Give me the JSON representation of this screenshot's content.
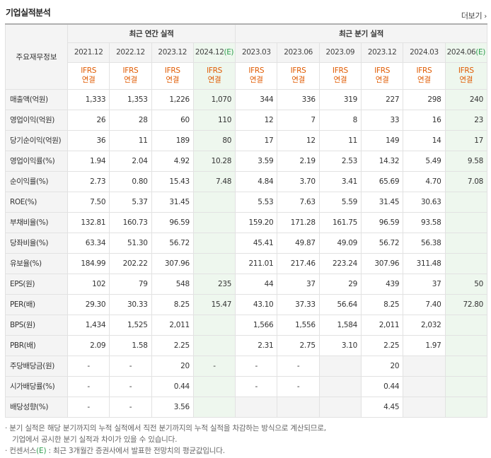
{
  "header": {
    "title": "기업실적분석",
    "more_label": "더보기",
    "more_arrow": "›"
  },
  "table": {
    "label_header": "주요재무정보",
    "group_annual": "최근 연간 실적",
    "group_quarter": "최근 분기 실적",
    "periods": [
      {
        "label": "2021.12",
        "est": false
      },
      {
        "label": "2022.12",
        "est": false
      },
      {
        "label": "2023.12",
        "est": false
      },
      {
        "label": "2024.12",
        "est": true
      },
      {
        "label": "2023.03",
        "est": false
      },
      {
        "label": "2023.06",
        "est": false
      },
      {
        "label": "2023.09",
        "est": false
      },
      {
        "label": "2023.12",
        "est": false
      },
      {
        "label": "2024.03",
        "est": false
      },
      {
        "label": "2024.06",
        "est": true
      }
    ],
    "est_mark": "(E)",
    "ifrs_line1": "IFRS",
    "ifrs_line2": "연결",
    "rows": [
      {
        "label": "매출액(억원)",
        "values": [
          "1,333",
          "1,353",
          "1,226",
          "1,070",
          "344",
          "336",
          "319",
          "227",
          "298",
          "240"
        ]
      },
      {
        "label": "영업이익(억원)",
        "values": [
          "26",
          "28",
          "60",
          "110",
          "12",
          "7",
          "8",
          "33",
          "16",
          "23"
        ]
      },
      {
        "label": "당기순이익(억원)",
        "values": [
          "36",
          "11",
          "189",
          "80",
          "17",
          "12",
          "11",
          "149",
          "14",
          "17"
        ]
      },
      {
        "label": "영업이익률(%)",
        "values": [
          "1.94",
          "2.04",
          "4.92",
          "10.28",
          "3.59",
          "2.19",
          "2.53",
          "14.32",
          "5.49",
          "9.58"
        ]
      },
      {
        "label": "순이익률(%)",
        "values": [
          "2.73",
          "0.80",
          "15.43",
          "7.48",
          "4.84",
          "3.70",
          "3.41",
          "65.69",
          "4.70",
          "7.08"
        ]
      },
      {
        "label": "ROE(%)",
        "values": [
          "7.50",
          "5.37",
          "31.45",
          "",
          "5.53",
          "7.63",
          "5.59",
          "31.45",
          "30.63",
          ""
        ]
      },
      {
        "label": "부채비율(%)",
        "values": [
          "132.81",
          "160.73",
          "96.59",
          "",
          "159.20",
          "171.28",
          "161.75",
          "96.59",
          "93.58",
          ""
        ]
      },
      {
        "label": "당좌비율(%)",
        "values": [
          "63.34",
          "51.30",
          "56.72",
          "",
          "45.41",
          "49.87",
          "49.09",
          "56.72",
          "56.38",
          ""
        ]
      },
      {
        "label": "유보율(%)",
        "values": [
          "184.99",
          "202.22",
          "307.96",
          "",
          "211.01",
          "217.46",
          "223.24",
          "307.96",
          "311.48",
          ""
        ]
      },
      {
        "label": "EPS(원)",
        "values": [
          "102",
          "79",
          "548",
          "235",
          "44",
          "37",
          "29",
          "439",
          "37",
          "50"
        ]
      },
      {
        "label": "PER(배)",
        "values": [
          "29.30",
          "30.33",
          "8.25",
          "15.47",
          "43.10",
          "37.33",
          "56.64",
          "8.25",
          "7.40",
          "72.80"
        ]
      },
      {
        "label": "BPS(원)",
        "values": [
          "1,434",
          "1,525",
          "2,011",
          "",
          "1,566",
          "1,556",
          "1,584",
          "2,011",
          "2,032",
          ""
        ]
      },
      {
        "label": "PBR(배)",
        "values": [
          "2.09",
          "1.58",
          "2.25",
          "",
          "2.31",
          "2.75",
          "3.10",
          "2.25",
          "1.97",
          ""
        ]
      },
      {
        "label": "주당배당금(원)",
        "values": [
          "-",
          "-",
          "20",
          "-",
          "-",
          "-",
          "",
          "20",
          "",
          ""
        ]
      },
      {
        "label": "시가배당률(%)",
        "values": [
          "-",
          "-",
          "0.44",
          "",
          "-",
          "-",
          "",
          "0.44",
          "",
          ""
        ]
      },
      {
        "label": "배당성향(%)",
        "values": [
          "-",
          "-",
          "3.56",
          "",
          "",
          "",
          "",
          "4.45",
          "",
          ""
        ]
      }
    ]
  },
  "notes": {
    "line1": "· 분기 실적은 해당 분기까지의 누적 실적에서 직전 분기까지의 누적 실적을 차감하는 방식으로 계산되므로,",
    "line2": "기업에서 공시한 분기 실적과 차이가 있을 수 있습니다.",
    "line3_prefix": "· 컨센서스",
    "line3_mark": "(E)",
    "line3_suffix": " : 최근 3개월간 증권사에서 발표한 전망치의 평균값입니다."
  },
  "colors": {
    "accent_orange": "#e05a00",
    "estimate_green": "#2f9e4f",
    "estimate_bg": "#eef7ee",
    "header_bg": "#f4f4f4"
  },
  "icons": {
    "more": "chevron-right-icon"
  }
}
